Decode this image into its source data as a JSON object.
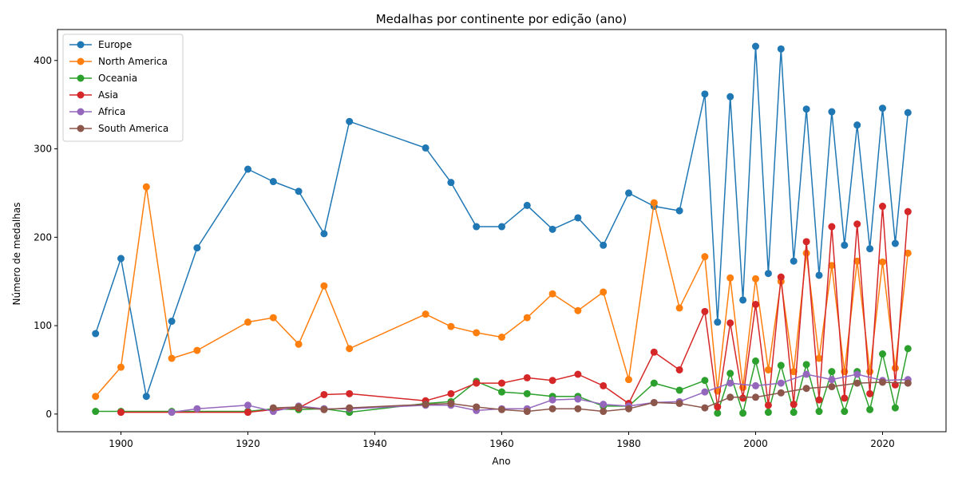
{
  "chart_data": {
    "type": "line",
    "title": "Medalhas por continente por edição (ano)",
    "xlabel": "Ano",
    "ylabel": "Número de medalhas",
    "xlim": [
      1890,
      2030
    ],
    "ylim": [
      -20,
      435
    ],
    "xticks": [
      1900,
      1920,
      1940,
      1960,
      1980,
      2000,
      2020
    ],
    "yticks": [
      0,
      100,
      200,
      300,
      400
    ],
    "grid": false,
    "legend_position": "top-left",
    "series": [
      {
        "name": "Europe",
        "color": "#1f77b4",
        "x": [
          1896,
          1900,
          1904,
          1908,
          1912,
          1920,
          1924,
          1928,
          1932,
          1936,
          1948,
          1952,
          1956,
          1960,
          1964,
          1968,
          1972,
          1976,
          1980,
          1984,
          1988,
          1992,
          1994,
          1996,
          1998,
          2000,
          2002,
          2004,
          2006,
          2008,
          2010,
          2012,
          2014,
          2016,
          2018,
          2020,
          2022,
          2024
        ],
        "y": [
          91,
          176,
          20,
          105,
          188,
          277,
          263,
          252,
          204,
          331,
          301,
          262,
          212,
          212,
          236,
          209,
          222,
          191,
          250,
          235,
          230,
          362,
          104,
          359,
          129,
          416,
          159,
          413,
          173,
          345,
          157,
          342,
          191,
          327,
          187,
          346,
          193,
          341
        ]
      },
      {
        "name": "North America",
        "color": "#ff7f0e",
        "x": [
          1896,
          1900,
          1904,
          1908,
          1912,
          1920,
          1924,
          1928,
          1932,
          1936,
          1948,
          1952,
          1956,
          1960,
          1964,
          1968,
          1972,
          1976,
          1980,
          1984,
          1988,
          1992,
          1994,
          1996,
          1998,
          2000,
          2002,
          2004,
          2006,
          2008,
          2010,
          2012,
          2014,
          2016,
          2018,
          2020,
          2022,
          2024
        ],
        "y": [
          20,
          53,
          257,
          63,
          72,
          104,
          109,
          79,
          145,
          74,
          113,
          99,
          92,
          87,
          109,
          136,
          117,
          138,
          39,
          239,
          120,
          178,
          26,
          154,
          30,
          153,
          50,
          150,
          48,
          182,
          63,
          168,
          48,
          173,
          48,
          172,
          52,
          182
        ]
      },
      {
        "name": "Oceania",
        "color": "#2ca02c",
        "x": [
          1896,
          1900,
          1908,
          1920,
          1924,
          1928,
          1932,
          1936,
          1948,
          1952,
          1956,
          1960,
          1964,
          1968,
          1972,
          1976,
          1980,
          1984,
          1988,
          1992,
          1994,
          1996,
          1998,
          2000,
          2002,
          2004,
          2006,
          2008,
          2010,
          2012,
          2014,
          2016,
          2018,
          2020,
          2022,
          2024
        ],
        "y": [
          3,
          3,
          3,
          3,
          6,
          5,
          6,
          2,
          12,
          14,
          37,
          25,
          23,
          20,
          20,
          9,
          9,
          35,
          27,
          38,
          1,
          46,
          1,
          60,
          2,
          55,
          2,
          56,
          3,
          48,
          3,
          48,
          5,
          68,
          7,
          74
        ]
      },
      {
        "name": "Asia",
        "color": "#d62728",
        "x": [
          1900,
          1920,
          1924,
          1928,
          1932,
          1936,
          1948,
          1952,
          1956,
          1960,
          1964,
          1968,
          1972,
          1976,
          1980,
          1984,
          1988,
          1992,
          1994,
          1996,
          1998,
          2000,
          2002,
          2004,
          2006,
          2008,
          2010,
          2012,
          2014,
          2016,
          2018,
          2020,
          2022,
          2024
        ],
        "y": [
          2,
          2,
          5,
          7,
          22,
          23,
          15,
          23,
          35,
          35,
          41,
          38,
          45,
          32,
          12,
          70,
          50,
          116,
          8,
          103,
          18,
          124,
          10,
          155,
          11,
          195,
          16,
          212,
          18,
          215,
          23,
          235,
          33,
          229
        ]
      },
      {
        "name": "Africa",
        "color": "#9467bd",
        "x": [
          1908,
          1912,
          1920,
          1924,
          1928,
          1932,
          1936,
          1948,
          1952,
          1956,
          1960,
          1964,
          1968,
          1972,
          1976,
          1980,
          1984,
          1988,
          1992,
          1996,
          2000,
          2004,
          2008,
          2012,
          2016,
          2020,
          2024
        ],
        "y": [
          2,
          6,
          10,
          3,
          9,
          6,
          6,
          10,
          10,
          4,
          6,
          6,
          16,
          17,
          11,
          9,
          13,
          14,
          25,
          35,
          32,
          35,
          45,
          39,
          45,
          38,
          39
        ]
      },
      {
        "name": "South America",
        "color": "#8c564b",
        "x": [
          1924,
          1928,
          1932,
          1936,
          1948,
          1952,
          1956,
          1960,
          1964,
          1968,
          1972,
          1976,
          1980,
          1984,
          1988,
          1992,
          1996,
          2000,
          2004,
          2008,
          2012,
          2016,
          2020,
          2024
        ],
        "y": [
          7,
          8,
          5,
          7,
          11,
          12,
          8,
          5,
          3,
          6,
          6,
          3,
          6,
          13,
          12,
          7,
          19,
          19,
          24,
          29,
          31,
          35,
          36,
          35
        ]
      }
    ]
  }
}
